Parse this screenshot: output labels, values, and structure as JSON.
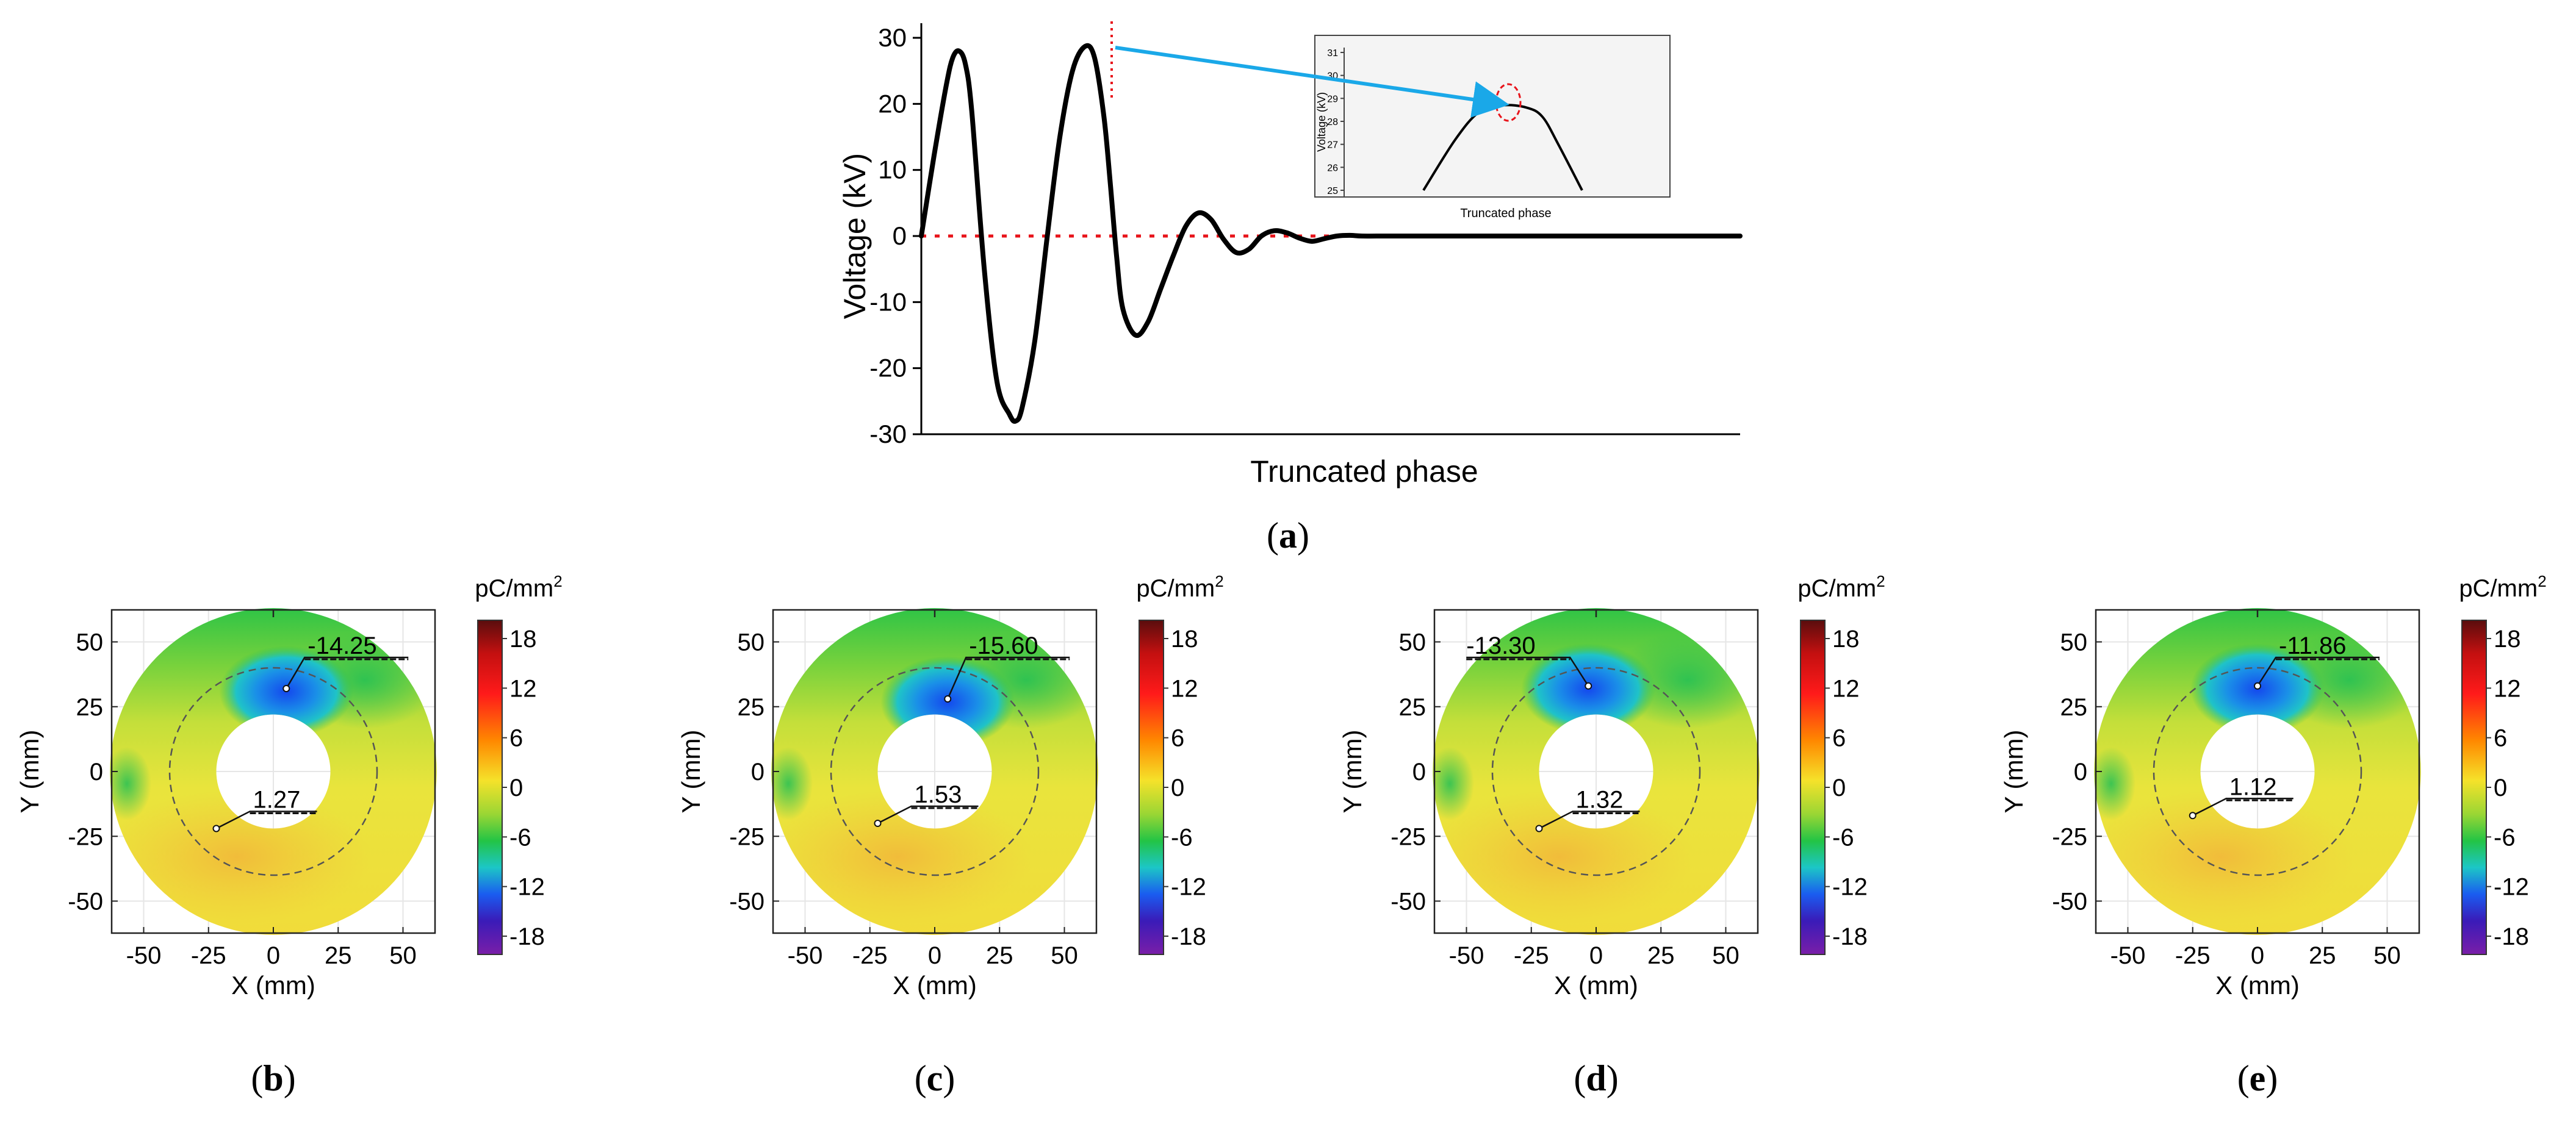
{
  "chart_data": [
    {
      "panel": "a",
      "type": "line",
      "ylabel": "Voltage (kV)",
      "xlabel": "Truncated phase",
      "ylim": [
        -30,
        30
      ],
      "yticks": [
        30,
        20,
        10,
        0,
        -10,
        -20,
        -30
      ],
      "x": [
        0,
        0.2,
        0.4,
        0.5,
        0.6,
        0.7,
        0.8,
        1.0,
        1.2,
        1.4,
        1.5,
        1.6,
        1.8,
        2.0,
        2.2,
        2.4,
        2.6,
        2.75,
        2.9,
        3.0,
        3.1,
        3.2,
        3.4,
        3.6,
        3.8,
        4.0,
        4.2,
        4.4,
        4.6,
        4.8,
        5.0,
        5.2,
        5.4,
        5.6,
        5.8,
        6.0,
        6.2,
        6.4,
        6.6,
        6.8,
        7.0,
        7.4,
        8.0,
        9.0,
        10.0,
        11.0,
        12.0,
        13.0
      ],
      "y": [
        0,
        12,
        23,
        27,
        28,
        26,
        19,
        -5,
        -22,
        -27,
        -28,
        -26,
        -16,
        0,
        15,
        25,
        28.7,
        27,
        18,
        8,
        -3,
        -11,
        -15,
        -13,
        -8,
        -3,
        1.5,
        3.5,
        2.5,
        -0.5,
        -2.5,
        -2,
        0,
        0.8,
        0.5,
        -0.3,
        -0.8,
        -0.4,
        0,
        0.1,
        0,
        0,
        0,
        0,
        0,
        0,
        0,
        0
      ],
      "reference_line": 0,
      "inset": {
        "xlabel": "Truncated phase",
        "ylabel": "Voltage (kV)",
        "yticks": [
          "31",
          "30",
          "29",
          "28",
          "27",
          "26",
          "25"
        ],
        "ylim": [
          25,
          31
        ],
        "x": [
          0,
          0.2,
          0.35,
          0.5,
          0.65,
          0.75,
          0.85,
          1.0
        ],
        "y": [
          25,
          27.2,
          28.4,
          28.7,
          28.6,
          28.2,
          27.0,
          25
        ]
      },
      "caption": "(a)"
    },
    {
      "panel": "b",
      "type": "heatmap",
      "xlabel": "X (mm)",
      "ylabel": "Y (mm)",
      "xticks": [
        "-50",
        "-25",
        "0",
        "25",
        "50"
      ],
      "yticks": [
        "50",
        "25",
        "0",
        "-25",
        "-50"
      ],
      "colorbar": {
        "unit": "pC/mm",
        "sup": "2",
        "ticks": [
          "18",
          "12",
          "6",
          "0",
          "-6",
          "-12",
          "-18"
        ]
      },
      "min_label": "-14.25",
      "min_point": [
        5,
        32
      ],
      "max_label": "1.27",
      "max_point": [
        -22,
        -22
      ],
      "caption": "(b)"
    },
    {
      "panel": "c",
      "type": "heatmap",
      "xlabel": "X (mm)",
      "ylabel": "Y (mm)",
      "xticks": [
        "-50",
        "-25",
        "0",
        "25",
        "50"
      ],
      "yticks": [
        "50",
        "25",
        "0",
        "-25",
        "-50"
      ],
      "colorbar": {
        "unit": "pC/mm",
        "sup": "2",
        "ticks": [
          "18",
          "12",
          "6",
          "0",
          "-6",
          "-12",
          "-18"
        ]
      },
      "min_label": "-15.60",
      "min_point": [
        5,
        28
      ],
      "max_label": "1.53",
      "max_point": [
        -22,
        -20
      ],
      "caption": "(c)"
    },
    {
      "panel": "d",
      "type": "heatmap",
      "xlabel": "X (mm)",
      "ylabel": "Y (mm)",
      "xticks": [
        "-50",
        "-25",
        "0",
        "25",
        "50"
      ],
      "yticks": [
        "50",
        "25",
        "0",
        "-25",
        "-50"
      ],
      "colorbar": {
        "unit": "pC/mm",
        "sup": "2",
        "ticks": [
          "18",
          "12",
          "6",
          "0",
          "-6",
          "-12",
          "-18"
        ]
      },
      "min_label": "-13.30",
      "min_point": [
        -3,
        33
      ],
      "max_label": "1.32",
      "max_point": [
        -22,
        -22
      ],
      "caption": "(d)"
    },
    {
      "panel": "e",
      "type": "heatmap",
      "xlabel": "X (mm)",
      "ylabel": "Y (mm)",
      "xticks": [
        "-50",
        "-25",
        "0",
        "25",
        "50"
      ],
      "yticks": [
        "50",
        "25",
        "0",
        "-25",
        "-50"
      ],
      "colorbar": {
        "unit": "pC/mm",
        "sup": "2",
        "ticks": [
          "18",
          "12",
          "6",
          "0",
          "-6",
          "-12",
          "-18"
        ]
      },
      "min_label": "-11.86",
      "min_point": [
        0,
        33
      ],
      "max_label": "1.12",
      "max_point": [
        -25,
        -17
      ],
      "caption": "(e)"
    }
  ],
  "colors": {
    "curve": "#000000",
    "reference": "#e8141b",
    "arrow": "#1aa8e8",
    "inset_bg": "#f4f4f4"
  }
}
